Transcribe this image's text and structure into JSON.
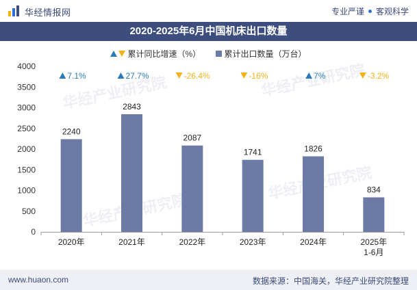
{
  "header": {
    "brand": "华经情报网",
    "tagline_left": "专业严谨",
    "tagline_right": "客观科学"
  },
  "watermark": "华经产业研究院",
  "colors": {
    "title_bg": "#3d4e7e",
    "bar": "#6b7ba6",
    "up": "#2b7bb9",
    "down": "#f3b21a"
  },
  "legend": {
    "growth_label": "累计同比增速（%）",
    "volume_label": "累计出口数量（万台）"
  },
  "footer": {
    "website": "www.huaon.com",
    "source": "数据来源：中国海关，华经产业研究院整理"
  },
  "chart_data": {
    "type": "bar",
    "title": "2020-2025年6月中国机床出口数量",
    "categories": [
      "2020年",
      "2021年",
      "2022年",
      "2023年",
      "2024年",
      "2025年\n1-6月"
    ],
    "values": [
      2240,
      2843,
      2087,
      1741,
      1826,
      834
    ],
    "value_labels": [
      "2240",
      "2843",
      "2087",
      "1741",
      "1826",
      "834"
    ],
    "growth": [
      {
        "dir": "up",
        "text": "7.1%"
      },
      {
        "dir": "up",
        "text": "27.7%"
      },
      {
        "dir": "down",
        "text": "-26.4%"
      },
      {
        "dir": "down",
        "text": "-16%"
      },
      {
        "dir": "up",
        "text": "7%"
      },
      {
        "dir": "down",
        "text": "-3.2%"
      }
    ],
    "ylim": [
      0,
      4000
    ],
    "yticks": [
      0,
      500,
      1000,
      1500,
      2000,
      2500,
      3000,
      3500,
      4000
    ],
    "xlabel": "",
    "ylabel": ""
  }
}
